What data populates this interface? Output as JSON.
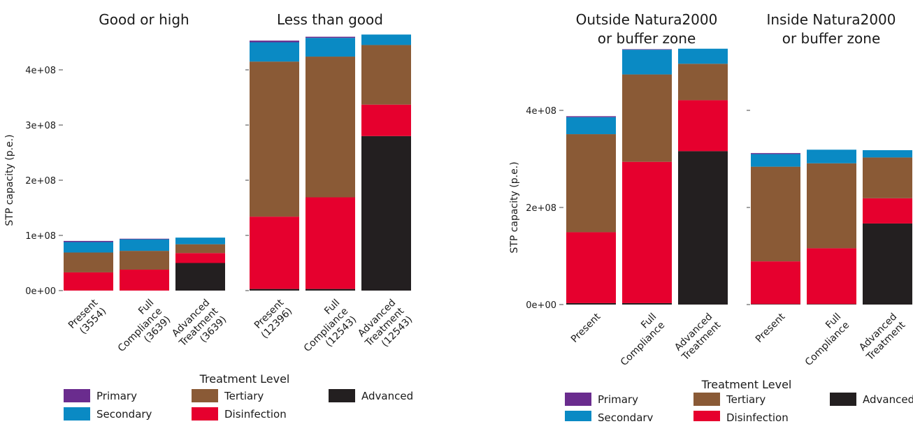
{
  "chart_data": [
    {
      "type": "bar",
      "stacked": true,
      "ylabel": "STP capacity (p.e.)",
      "ylim": [
        0,
        460000000
      ],
      "yticks": [
        0,
        100000000,
        200000000,
        300000000,
        400000000
      ],
      "ytick_labels": [
        "0e+00",
        "1e+08",
        "2e+08",
        "3e+08",
        "4e+08"
      ],
      "panels": [
        {
          "title": "Good or high",
          "categories": [
            "Present\n(3554)",
            "Full\nCompliance\n(3639)",
            "Advanced\nTreatment\n(3639)"
          ],
          "series": [
            {
              "name": "Advanced",
              "values": [
                0,
                0,
                50000000
              ]
            },
            {
              "name": "Disinfection",
              "values": [
                33000000,
                38000000,
                18000000
              ]
            },
            {
              "name": "Tertiary",
              "values": [
                36000000,
                34000000,
                16000000
              ]
            },
            {
              "name": "Secondary",
              "values": [
                19000000,
                21000000,
                12000000
              ]
            },
            {
              "name": "Primary",
              "values": [
                2000000,
                1000000,
                0
              ]
            }
          ]
        },
        {
          "title": "Less than good",
          "categories": [
            "Present\n(12396)",
            "Full\nCompliance\n(12543)",
            "Advanced\nTreatment\n(12543)"
          ],
          "series": [
            {
              "name": "Advanced",
              "values": [
                3000000,
                3000000,
                280000000
              ]
            },
            {
              "name": "Disinfection",
              "values": [
                131000000,
                166000000,
                57000000
              ]
            },
            {
              "name": "Tertiary",
              "values": [
                281000000,
                255000000,
                108000000
              ]
            },
            {
              "name": "Secondary",
              "values": [
                35000000,
                34000000,
                19000000
              ]
            },
            {
              "name": "Primary",
              "values": [
                3000000,
                2000000,
                0
              ]
            }
          ]
        }
      ],
      "legend": {
        "title": "Treatment Level",
        "placement": "bottom",
        "items": [
          {
            "name": "Primary",
            "color": "#6a2c8e"
          },
          {
            "name": "Secondary",
            "color": "#0a8ac4"
          },
          {
            "name": "Tertiary",
            "color": "#8a5a36"
          },
          {
            "name": "Disinfection",
            "color": "#e6002e"
          },
          {
            "name": "Advanced",
            "color": "#231f20"
          }
        ]
      }
    },
    {
      "type": "bar",
      "stacked": true,
      "ylabel": "STP capacity (p.e.)",
      "ylim": [
        0,
        530000000
      ],
      "yticks": [
        0,
        200000000,
        400000000
      ],
      "ytick_labels": [
        "0e+00",
        "2e+08",
        "4e+08"
      ],
      "panels": [
        {
          "title": "Outside Natura2000\nor buffer zone",
          "categories": [
            "Present",
            "Full\nCompliance",
            "Advanced\nTreatment"
          ],
          "series": [
            {
              "name": "Advanced",
              "values": [
                3000000,
                3000000,
                316000000
              ]
            },
            {
              "name": "Disinfection",
              "values": [
                146000000,
                291000000,
                105000000
              ]
            },
            {
              "name": "Tertiary",
              "values": [
                202000000,
                180000000,
                75000000
              ]
            },
            {
              "name": "Secondary",
              "values": [
                35000000,
                51000000,
                31000000
              ]
            },
            {
              "name": "Primary",
              "values": [
                2000000,
                1000000,
                0
              ]
            }
          ]
        },
        {
          "title": "Inside Natura2000\nor buffer zone",
          "categories": [
            "Present",
            "Full\nCompliance",
            "Advanced\nTreatment"
          ],
          "series": [
            {
              "name": "Advanced",
              "values": [
                1000000,
                1000000,
                167000000
              ]
            },
            {
              "name": "Disinfection",
              "values": [
                88000000,
                115000000,
                52000000
              ]
            },
            {
              "name": "Tertiary",
              "values": [
                195000000,
                175000000,
                84000000
              ]
            },
            {
              "name": "Secondary",
              "values": [
                26000000,
                28000000,
                15000000
              ]
            },
            {
              "name": "Primary",
              "values": [
                2000000,
                0,
                0
              ]
            }
          ]
        }
      ],
      "legend": {
        "title": "Treatment Level",
        "placement": "bottom",
        "items": [
          {
            "name": "Primary",
            "color": "#6a2c8e"
          },
          {
            "name": "Secondary",
            "color": "#0a8ac4"
          },
          {
            "name": "Tertiary",
            "color": "#8a5a36"
          },
          {
            "name": "Disinfection",
            "color": "#e6002e"
          },
          {
            "name": "Advanced",
            "color": "#231f20"
          }
        ]
      }
    }
  ]
}
